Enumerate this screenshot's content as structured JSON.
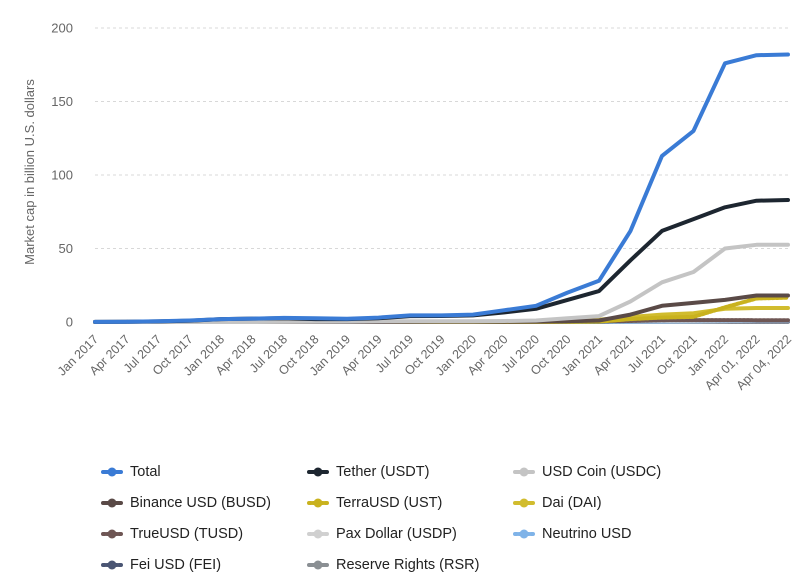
{
  "chart_data": {
    "type": "line",
    "ylabel": "Market cap in billion U.S. dollars",
    "ylim": [
      0,
      200
    ],
    "y_ticks": [
      0,
      50,
      100,
      150,
      200
    ],
    "grid": "horizontal-dashed",
    "legend_placement": "bottom",
    "categories": [
      "Jan 2017",
      "Apr 2017",
      "Jul 2017",
      "Oct 2017",
      "Jan 2018",
      "Apr 2018",
      "Jul 2018",
      "Oct 2018",
      "Jan 2019",
      "Apr 2019",
      "Jul 2019",
      "Oct 2019",
      "Jan 2020",
      "Apr 2020",
      "Jul 2020",
      "Oct 2020",
      "Jan 2021",
      "Apr 2021",
      "Jul 2021",
      "Oct 2021",
      "Jan 2022",
      "Apr 01, 2022",
      "Apr 04, 2022"
    ],
    "series": [
      {
        "name": "Total",
        "color": "#3a7bd5",
        "style": "solid",
        "values": [
          0.1,
          0.2,
          0.5,
          1.0,
          2.0,
          2.3,
          2.8,
          2.5,
          2.2,
          3.0,
          4.5,
          4.5,
          5.0,
          8.0,
          11.0,
          20.0,
          28.0,
          62.0,
          113.0,
          130.0,
          176.0,
          181.5,
          182.0
        ]
      },
      {
        "name": "Tether (USDT)",
        "color": "#1d2630",
        "style": "solid",
        "values": [
          0.1,
          0.2,
          0.4,
          0.8,
          2.0,
          2.3,
          2.6,
          2.0,
          2.0,
          2.5,
          4.0,
          4.1,
          4.5,
          6.5,
          9.0,
          15.0,
          21.0,
          42.0,
          62.0,
          70.0,
          78.0,
          82.5,
          83.0
        ]
      },
      {
        "name": "USD Coin (USDC)",
        "color": "#c4c4c4",
        "style": "solid",
        "values": [
          0,
          0,
          0,
          0,
          0,
          0,
          0.1,
          0.2,
          0.3,
          0.4,
          0.5,
          0.5,
          0.5,
          0.7,
          1.0,
          2.5,
          4.0,
          14.0,
          27.0,
          34.0,
          50.0,
          52.5,
          52.5
        ]
      },
      {
        "name": "Binance USD (BUSD)",
        "color": "#5a4a47",
        "style": "solid",
        "values": [
          0,
          0,
          0,
          0,
          0,
          0,
          0,
          0,
          0,
          0,
          0.1,
          0.2,
          0.2,
          0.2,
          0.3,
          0.5,
          1.0,
          5.0,
          11.0,
          13.0,
          15.0,
          18.0,
          18.0
        ]
      },
      {
        "name": "TerraUSD (UST)",
        "color": "#c9b21e",
        "style": "dotted",
        "values": [
          0,
          0,
          0,
          0,
          0,
          0,
          0,
          0,
          0,
          0,
          0,
          0,
          0,
          0,
          0,
          0.1,
          0.3,
          2.0,
          3.0,
          3.5,
          10.0,
          16.0,
          16.5
        ]
      },
      {
        "name": "Dai (DAI)",
        "color": "#d1bc2e",
        "style": "solid",
        "values": [
          0,
          0,
          0,
          0,
          0,
          0,
          0,
          0,
          0,
          0,
          0.1,
          0.1,
          0.1,
          0.1,
          0.2,
          0.8,
          1.5,
          3.5,
          5.0,
          6.0,
          9.0,
          9.5,
          9.5
        ]
      },
      {
        "name": "TrueUSD (TUSD)",
        "color": "#6e5654",
        "style": "dotted",
        "values": [
          0,
          0,
          0,
          0,
          0,
          0.1,
          0.2,
          0.2,
          0.2,
          0.2,
          0.2,
          0.2,
          0.2,
          0.2,
          0.3,
          0.4,
          0.5,
          0.7,
          1.2,
          1.3,
          1.3,
          1.2,
          1.2
        ]
      },
      {
        "name": "Pax Dollar (USDP)",
        "color": "#d0d0d0",
        "style": "dotted",
        "values": [
          0,
          0,
          0,
          0,
          0,
          0,
          0.1,
          0.2,
          0.2,
          0.2,
          0.2,
          0.2,
          0.2,
          0.3,
          0.4,
          0.5,
          0.6,
          0.8,
          0.9,
          0.9,
          1.0,
          1.0,
          1.0
        ]
      },
      {
        "name": "Neutrino USD",
        "color": "#7fb3e8",
        "style": "dotted",
        "values": [
          0,
          0,
          0,
          0,
          0,
          0,
          0,
          0,
          0,
          0,
          0,
          0,
          0,
          0.1,
          0.1,
          0.2,
          0.2,
          0.2,
          0.3,
          0.4,
          0.6,
          0.8,
          0.8
        ]
      },
      {
        "name": "Fei USD (FEI)",
        "color": "#4a5573",
        "style": "dotted",
        "values": [
          0,
          0,
          0,
          0,
          0,
          0,
          0,
          0,
          0,
          0,
          0,
          0,
          0,
          0,
          0,
          0,
          0,
          0.6,
          0.7,
          0.6,
          0.5,
          0.4,
          0.4
        ]
      },
      {
        "name": "Reserve Rights (RSR)",
        "color": "#8a8f93",
        "style": "solid",
        "values": [
          0,
          0,
          0,
          0,
          0,
          0,
          0,
          0,
          0,
          0,
          0.1,
          0.1,
          0.1,
          0.1,
          0.1,
          0.1,
          0.1,
          0.1,
          0.1,
          0.1,
          0.1,
          0.1,
          0.1
        ]
      }
    ]
  }
}
